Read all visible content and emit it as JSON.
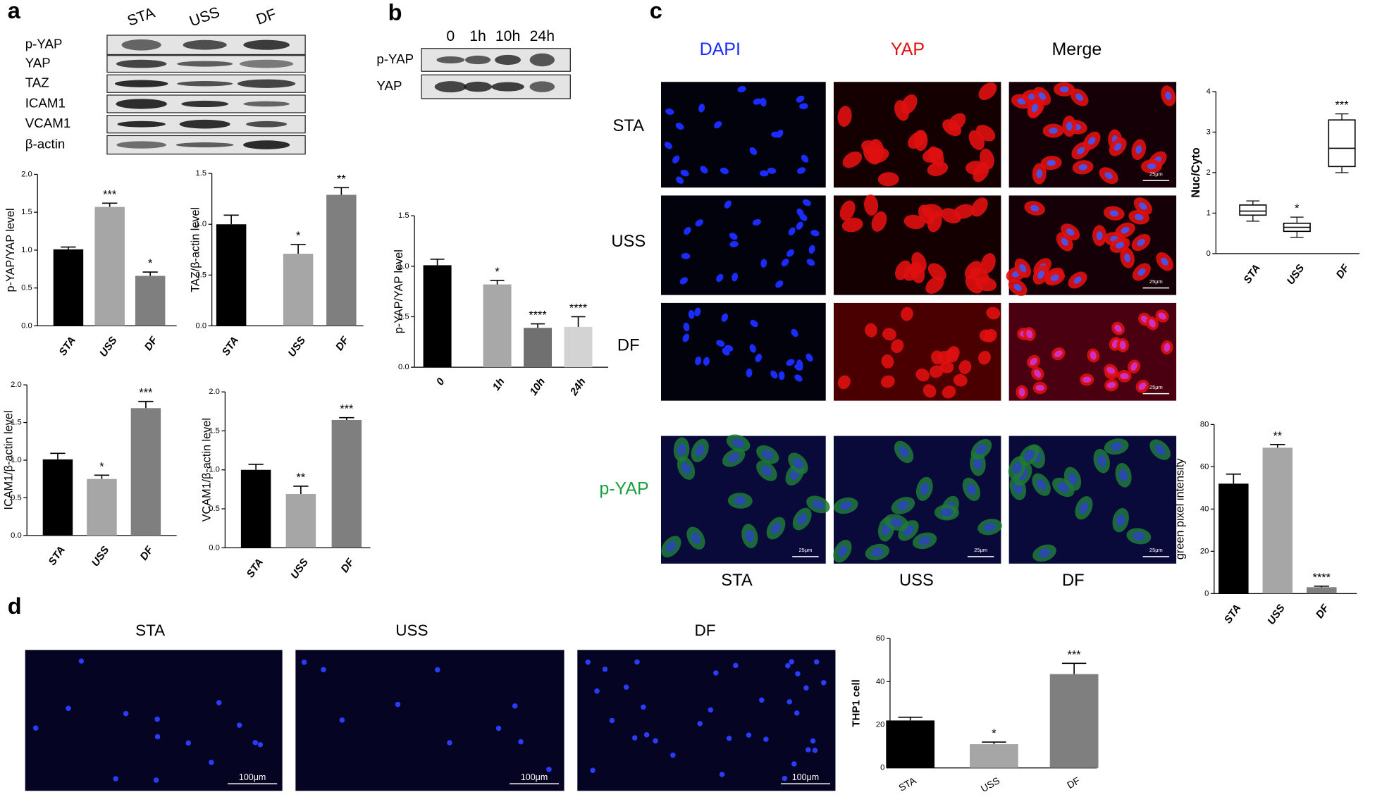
{
  "panels": {
    "a": {
      "letter": "a",
      "lanes": [
        "STA",
        "USS",
        "DF"
      ],
      "rows": [
        "p-YAP",
        "YAP",
        "TAZ",
        "ICAM1",
        "VCAM1",
        "β-actin"
      ]
    },
    "b": {
      "letter": "b",
      "lanes": [
        "0",
        "1h",
        "10h",
        "24h"
      ],
      "rows": [
        "p-YAP",
        "YAP"
      ]
    },
    "c": {
      "letter": "c",
      "columns": [
        "DAPI",
        "YAP",
        "Merge"
      ],
      "rows": [
        "STA",
        "USS",
        "DF"
      ],
      "stain": "p-YAP",
      "stain_columns": [
        "STA",
        "USS",
        "DF"
      ],
      "scale": "25μm"
    },
    "d": {
      "letter": "d",
      "columns": [
        "STA",
        "USS",
        "DF"
      ],
      "scale": "100μm"
    }
  },
  "chart_data": [
    {
      "type": "bar",
      "y_label": "p-YAP/YAP level",
      "categories": [
        "STA",
        "USS",
        "DF"
      ],
      "values": [
        1.01,
        1.57,
        0.66
      ],
      "errors": [
        0.03,
        0.05,
        0.05
      ],
      "annotations": [
        null,
        "***",
        "*"
      ],
      "colors": [
        "#000000",
        "#a6a6a6",
        "#7f7f7f"
      ],
      "ylim": [
        0,
        2
      ],
      "yticks": [
        {
          "value": 0,
          "label": "0.0"
        },
        {
          "value": 0.5,
          "label": "0.5"
        },
        {
          "value": 1,
          "label": "1.0"
        },
        {
          "value": 1.5,
          "label": "1.5"
        },
        {
          "value": 2,
          "label": "2.0"
        }
      ]
    },
    {
      "type": "bar",
      "y_label": "TAZ/β-actin level",
      "categories": [
        "STA",
        "USS",
        "DF"
      ],
      "values": [
        1.0,
        0.71,
        1.29
      ],
      "errors": [
        0.09,
        0.09,
        0.07
      ],
      "annotations": [
        null,
        "*",
        "**"
      ],
      "colors": [
        "#000000",
        "#a6a6a6",
        "#7f7f7f"
      ],
      "ylim": [
        0,
        1.5
      ],
      "yticks": [
        {
          "value": 0,
          "label": "0.0"
        },
        {
          "value": 0.5,
          "label": "0.5"
        },
        {
          "value": 1,
          "label": "1.0"
        },
        {
          "value": 1.5,
          "label": "1.5"
        }
      ]
    },
    {
      "type": "bar",
      "y_label": "ICAM1/β-actin level",
      "categories": [
        "STA",
        "USS",
        "DF"
      ],
      "values": [
        1.01,
        0.75,
        1.69
      ],
      "errors": [
        0.08,
        0.05,
        0.09
      ],
      "annotations": [
        null,
        "*",
        "***"
      ],
      "colors": [
        "#000000",
        "#a6a6a6",
        "#7f7f7f"
      ],
      "ylim": [
        0,
        2
      ],
      "yticks": [
        {
          "value": 0,
          "label": "0.0"
        },
        {
          "value": 0.5,
          "label": "0.5"
        },
        {
          "value": 1,
          "label": "1.0"
        },
        {
          "value": 1.5,
          "label": "1.5"
        },
        {
          "value": 2,
          "label": "2.0"
        }
      ]
    },
    {
      "type": "bar",
      "y_label": "VCAM1/β-actin level",
      "categories": [
        "STA",
        "USS",
        "DF"
      ],
      "values": [
        1.0,
        0.69,
        1.64
      ],
      "errors": [
        0.07,
        0.1,
        0.03
      ],
      "annotations": [
        null,
        "**",
        "***"
      ],
      "colors": [
        "#000000",
        "#a6a6a6",
        "#7f7f7f"
      ],
      "ylim": [
        0,
        2
      ],
      "yticks": [
        {
          "value": 0,
          "label": "0.0"
        },
        {
          "value": 0.5,
          "label": "0.5"
        },
        {
          "value": 1,
          "label": "1.0"
        },
        {
          "value": 1.5,
          "label": "1.5"
        },
        {
          "value": 2,
          "label": "2.0"
        }
      ]
    },
    {
      "type": "bar",
      "y_label": "p-YAP/YAP level",
      "categories": [
        "0",
        "1h",
        "10h",
        "24h"
      ],
      "values": [
        1.01,
        0.82,
        0.39,
        0.4
      ],
      "errors": [
        0.06,
        0.04,
        0.04,
        0.1
      ],
      "annotations": [
        null,
        "*",
        "****",
        "****"
      ],
      "colors": [
        "#000000",
        "#a8a8a8",
        "#707070",
        "#d3d3d3"
      ],
      "ylim": [
        0,
        1.5
      ],
      "yticks": [
        {
          "value": 0,
          "label": "0.0"
        },
        {
          "value": 0.5,
          "label": "0.5"
        },
        {
          "value": 1,
          "label": "1.0"
        },
        {
          "value": 1.5,
          "label": "1.5"
        }
      ]
    },
    {
      "type": "box",
      "y_label": "Nuc/Cyto",
      "categories": [
        "STA",
        "USS",
        "DF"
      ],
      "boxes": [
        {
          "min": 0.8,
          "q1": 0.95,
          "median": 1.05,
          "q3": 1.2,
          "max": 1.3
        },
        {
          "min": 0.4,
          "q1": 0.55,
          "median": 0.65,
          "q3": 0.75,
          "max": 0.9
        },
        {
          "min": 2.0,
          "q1": 2.15,
          "median": 2.6,
          "q3": 3.3,
          "max": 3.45
        }
      ],
      "annotations": [
        null,
        "*",
        "***"
      ],
      "ylim": [
        0,
        4
      ],
      "yticks": [
        0,
        1,
        2,
        3,
        4
      ]
    },
    {
      "type": "bar",
      "y_label": "green pixel intensity",
      "categories": [
        "STA",
        "USS",
        "DF"
      ],
      "values": [
        52,
        69,
        3
      ],
      "errors": [
        4.5,
        1.5,
        0.5
      ],
      "annotations": [
        null,
        "**",
        "****"
      ],
      "colors": [
        "#000000",
        "#a6a6a6",
        "#7f7f7f"
      ],
      "ylim": [
        0,
        80
      ],
      "yticks": [
        0,
        20,
        40,
        60,
        80
      ]
    },
    {
      "type": "bar",
      "y_label": "THP1 cell",
      "categories": [
        "STA",
        "USS",
        "DF"
      ],
      "values": [
        22,
        11,
        43.5
      ],
      "errors": [
        1.5,
        1,
        5
      ],
      "annotations": [
        null,
        "*",
        "***"
      ],
      "colors": [
        "#000000",
        "#a6a6a6",
        "#7f7f7f"
      ],
      "ylim": [
        0,
        60
      ],
      "yticks": [
        0,
        20,
        40,
        60
      ]
    }
  ]
}
